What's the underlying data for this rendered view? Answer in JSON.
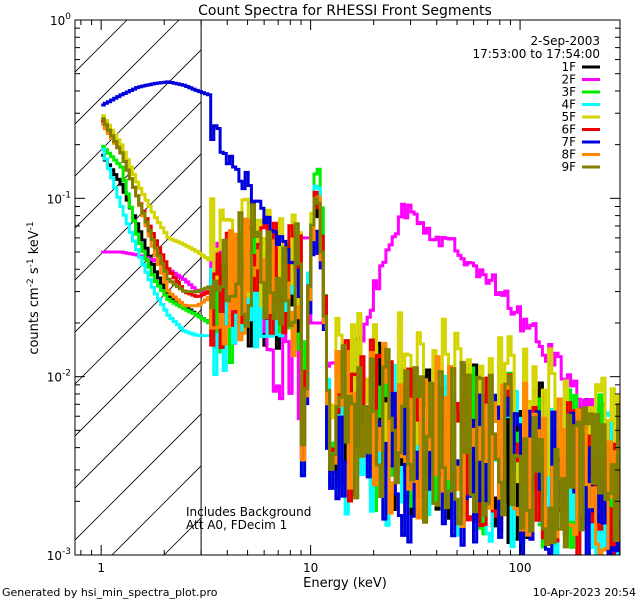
{
  "chart_data": {
    "type": "line",
    "title": "Count Spectra for RHESSI Front Segments",
    "xlabel": "Energy (keV)",
    "ylabel_parts": [
      "counts cm",
      "-2",
      " s",
      "-1",
      " keV",
      "-1"
    ],
    "xscale": "log",
    "yscale": "log",
    "xlim": [
      0.75,
      300
    ],
    "ylim": [
      0.001,
      1
    ],
    "x_ticks": [
      {
        "value": 1,
        "label": "1"
      },
      {
        "value": 10,
        "label": "10"
      },
      {
        "value": 100,
        "label": "100"
      }
    ],
    "y_ticks": [
      {
        "value": 0.001,
        "base": "10",
        "exp": "-3"
      },
      {
        "value": 0.01,
        "base": "10",
        "exp": "-2"
      },
      {
        "value": 0.1,
        "base": "10",
        "exp": "-1"
      },
      {
        "value": 1,
        "base": "10",
        "exp": "0"
      }
    ],
    "date": "2-Sep-2003",
    "time_range": "17:53:00 to 17:54:00",
    "annotation_lines": [
      "Includes Background",
      "Att A0, FDecim 1"
    ],
    "shaded_region": {
      "x_from": 0.75,
      "x_to": 3,
      "style": "hatched"
    },
    "legend_position": "top-right",
    "series": [
      {
        "name": "1F",
        "color": "#000000",
        "low": [
          0.18,
          0.12,
          0.07,
          0.04,
          0.028,
          0.025,
          0.022,
          0.02
        ],
        "mid": [
          0.022,
          0.03,
          0.03,
          0.028,
          0.025
        ],
        "peak": 0.09,
        "base": 0.006,
        "tail": 0.0025
      },
      {
        "name": "2F",
        "color": "#ff00ff",
        "low": [
          0.05,
          0.05,
          0.048,
          0.045,
          0.04,
          0.035,
          0.03,
          0.03
        ],
        "mid": [
          0.028,
          0.025,
          0.02,
          0.015,
          0.012
        ],
        "peak": 0.1,
        "base": 0.01,
        "tail": 0.006
      },
      {
        "name": "3F",
        "color": "#00ee00",
        "low": [
          0.2,
          0.15,
          0.06,
          0.035,
          0.027,
          0.024,
          0.022,
          0.02
        ],
        "mid": [
          0.022,
          0.028,
          0.03,
          0.03,
          0.025
        ],
        "peak": 0.13,
        "base": 0.006,
        "tail": 0.0025
      },
      {
        "name": "4F",
        "color": "#00ffff",
        "low": [
          0.2,
          0.09,
          0.05,
          0.03,
          0.022,
          0.018,
          0.017,
          0.017
        ],
        "mid": [
          0.02,
          0.025,
          0.028,
          0.028,
          0.024
        ],
        "peak": 0.11,
        "base": 0.005,
        "tail": 0.0022
      },
      {
        "name": "5F",
        "color": "#d4d400",
        "low": [
          0.3,
          0.2,
          0.12,
          0.08,
          0.06,
          0.055,
          0.05,
          0.045
        ],
        "mid": [
          0.045,
          0.05,
          0.055,
          0.05,
          0.045
        ],
        "peak": 0.1,
        "base": 0.01,
        "tail": 0.004
      },
      {
        "name": "6F",
        "color": "#ee0000",
        "low": [
          0.28,
          0.18,
          0.1,
          0.06,
          0.04,
          0.03,
          0.028,
          0.03
        ],
        "mid": [
          0.03,
          0.035,
          0.04,
          0.035,
          0.03
        ],
        "peak": 0.1,
        "base": 0.006,
        "tail": 0.0025
      },
      {
        "name": "7F",
        "color": "#0000dd",
        "low": [
          0.33,
          0.38,
          0.42,
          0.44,
          0.45,
          0.43,
          0.4,
          0.38
        ],
        "mid": [
          0.25,
          0.15,
          0.08,
          0.05,
          0.03
        ],
        "peak": 0.06,
        "base": 0.004,
        "tail": 0.002
      },
      {
        "name": "8F",
        "color": "#ff8800",
        "low": [
          0.27,
          0.18,
          0.1,
          0.05,
          0.03,
          0.025,
          0.025,
          0.028
        ],
        "mid": [
          0.03,
          0.035,
          0.035,
          0.03,
          0.025
        ],
        "peak": 0.09,
        "base": 0.006,
        "tail": 0.0025
      },
      {
        "name": "9F",
        "color": "#808000",
        "low": [
          0.29,
          0.18,
          0.1,
          0.055,
          0.035,
          0.03,
          0.03,
          0.032
        ],
        "mid": [
          0.035,
          0.04,
          0.045,
          0.04,
          0.035
        ],
        "peak": 0.09,
        "base": 0.006,
        "tail": 0.0025
      }
    ]
  },
  "footer": {
    "left": "Generated by hsi_min_spectra_plot.pro",
    "right": "10-Apr-2023 20:54"
  }
}
